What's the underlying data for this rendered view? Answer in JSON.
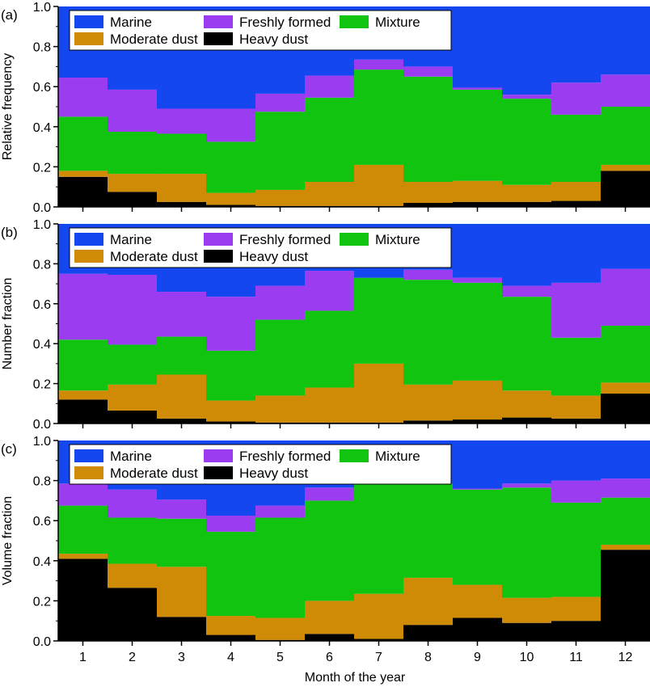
{
  "colors": {
    "Marine": "#1447f0",
    "Freshly formed": "#9b3cf0",
    "Mixture": "#10c410",
    "Moderate dust": "#cf8a06",
    "Heavy dust": "#000000"
  },
  "legend": {
    "row1": [
      "Marine",
      "Freshly formed",
      "Mixture"
    ],
    "row2": [
      "Moderate dust",
      "Heavy dust"
    ]
  },
  "xlabel": "Month of the year",
  "chart_data": [
    {
      "type": "bar",
      "stacked": true,
      "panel_label": "(a)",
      "ylabel": "Relative frequency",
      "ylim": [
        0,
        1
      ],
      "yticks": [
        "0.0",
        "0.2",
        "0.4",
        "0.6",
        "0.8",
        "1.0"
      ],
      "categories": [
        "1",
        "2",
        "3",
        "4",
        "5",
        "6",
        "7",
        "8",
        "9",
        "10",
        "11",
        "12"
      ],
      "series": [
        {
          "name": "Heavy dust",
          "values": [
            0.15,
            0.075,
            0.025,
            0.01,
            0.005,
            0.005,
            0.005,
            0.02,
            0.025,
            0.025,
            0.03,
            0.18
          ]
        },
        {
          "name": "Moderate dust",
          "values": [
            0.03,
            0.09,
            0.14,
            0.06,
            0.08,
            0.12,
            0.205,
            0.105,
            0.105,
            0.085,
            0.095,
            0.03
          ]
        },
        {
          "name": "Mixture",
          "values": [
            0.27,
            0.21,
            0.2,
            0.255,
            0.39,
            0.42,
            0.475,
            0.525,
            0.455,
            0.43,
            0.335,
            0.29
          ]
        },
        {
          "name": "Freshly formed",
          "values": [
            0.195,
            0.21,
            0.125,
            0.165,
            0.09,
            0.11,
            0.05,
            0.05,
            0.01,
            0.02,
            0.16,
            0.16
          ]
        },
        {
          "name": "Marine",
          "values": [
            0.355,
            0.415,
            0.51,
            0.51,
            0.435,
            0.345,
            0.265,
            0.3,
            0.405,
            0.44,
            0.38,
            0.34
          ]
        }
      ]
    },
    {
      "type": "bar",
      "stacked": true,
      "panel_label": "(b)",
      "ylabel": "Number fraction",
      "ylim": [
        0,
        1
      ],
      "yticks": [
        "0.0",
        "0.2",
        "0.4",
        "0.6",
        "0.8",
        "1.0"
      ],
      "categories": [
        "1",
        "2",
        "3",
        "4",
        "5",
        "6",
        "7",
        "8",
        "9",
        "10",
        "11",
        "12"
      ],
      "series": [
        {
          "name": "Heavy dust",
          "values": [
            0.12,
            0.065,
            0.025,
            0.01,
            0.005,
            0.005,
            0.005,
            0.015,
            0.02,
            0.03,
            0.025,
            0.15
          ]
        },
        {
          "name": "Moderate dust",
          "values": [
            0.045,
            0.13,
            0.22,
            0.105,
            0.135,
            0.175,
            0.295,
            0.18,
            0.195,
            0.135,
            0.115,
            0.055
          ]
        },
        {
          "name": "Mixture",
          "values": [
            0.255,
            0.2,
            0.19,
            0.25,
            0.38,
            0.385,
            0.43,
            0.525,
            0.49,
            0.47,
            0.29,
            0.285
          ]
        },
        {
          "name": "Freshly formed",
          "values": [
            0.33,
            0.35,
            0.225,
            0.27,
            0.17,
            0.2,
            0.0,
            0.05,
            0.025,
            0.055,
            0.275,
            0.285
          ]
        },
        {
          "name": "Marine",
          "values": [
            0.25,
            0.255,
            0.34,
            0.365,
            0.31,
            0.235,
            0.27,
            0.23,
            0.27,
            0.31,
            0.295,
            0.225
          ]
        }
      ]
    },
    {
      "type": "bar",
      "stacked": true,
      "panel_label": "(c)",
      "ylabel": "Volume fraction",
      "ylim": [
        0,
        1
      ],
      "yticks": [
        "0.0",
        "0.2",
        "0.4",
        "0.6",
        "0.8",
        "1.0"
      ],
      "categories": [
        "1",
        "2",
        "3",
        "4",
        "5",
        "6",
        "7",
        "8",
        "9",
        "10",
        "11",
        "12"
      ],
      "series": [
        {
          "name": "Heavy dust",
          "values": [
            0.41,
            0.265,
            0.12,
            0.03,
            0.005,
            0.035,
            0.01,
            0.08,
            0.115,
            0.09,
            0.1,
            0.455
          ]
        },
        {
          "name": "Moderate dust",
          "values": [
            0.025,
            0.12,
            0.25,
            0.095,
            0.11,
            0.165,
            0.225,
            0.235,
            0.165,
            0.125,
            0.12,
            0.025
          ]
        },
        {
          "name": "Mixture",
          "values": [
            0.24,
            0.23,
            0.24,
            0.42,
            0.5,
            0.5,
            0.55,
            0.47,
            0.475,
            0.55,
            0.47,
            0.235
          ]
        },
        {
          "name": "Freshly formed",
          "values": [
            0.11,
            0.14,
            0.095,
            0.08,
            0.06,
            0.065,
            0.0,
            0.0,
            0.005,
            0.02,
            0.11,
            0.095
          ]
        },
        {
          "name": "Marine",
          "values": [
            0.215,
            0.245,
            0.295,
            0.375,
            0.325,
            0.235,
            0.215,
            0.215,
            0.24,
            0.215,
            0.2,
            0.19
          ]
        }
      ]
    }
  ]
}
